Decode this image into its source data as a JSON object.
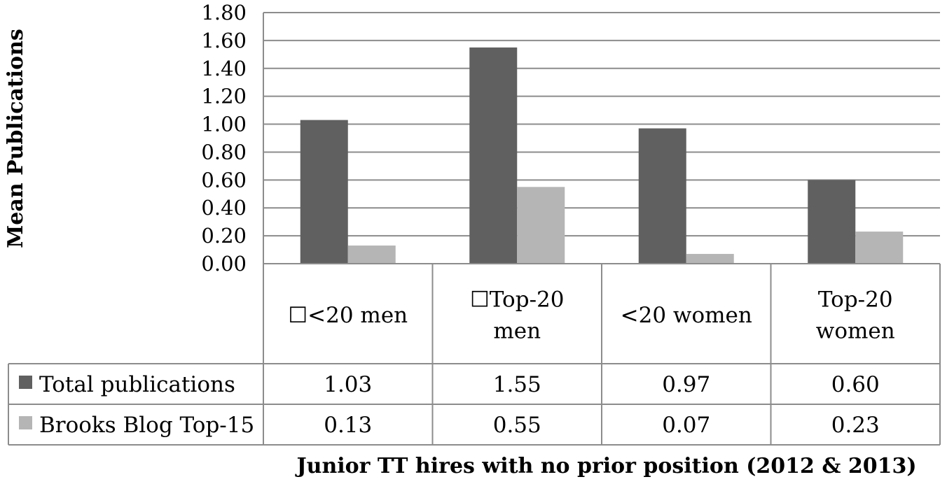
{
  "chart_data": {
    "type": "bar",
    "categories": [
      "☐<20 men",
      "☐Top-20 men",
      "<20 women",
      "Top-20 women"
    ],
    "series": [
      {
        "name": "Total publications",
        "values": [
          1.03,
          1.55,
          0.97,
          0.6
        ],
        "labels": [
          "1.03",
          "1.55",
          "0.97",
          "0.60"
        ],
        "color": "#606060"
      },
      {
        "name": "Brooks Blog Top-15",
        "values": [
          0.13,
          0.55,
          0.07,
          0.23
        ],
        "labels": [
          "0.13",
          "0.55",
          "0.07",
          "0.23"
        ],
        "color": "#b5b5b5"
      }
    ],
    "yticks": [
      "0.00",
      "0.20",
      "0.40",
      "0.60",
      "0.80",
      "1.00",
      "1.20",
      "1.40",
      "1.60",
      "1.80"
    ],
    "ylim": [
      0,
      1.8
    ],
    "ylabel": "Mean Publications",
    "xlabel": "Junior TT hires with no prior position (2012 & 2013)",
    "grid": true,
    "legend": "data-table"
  }
}
